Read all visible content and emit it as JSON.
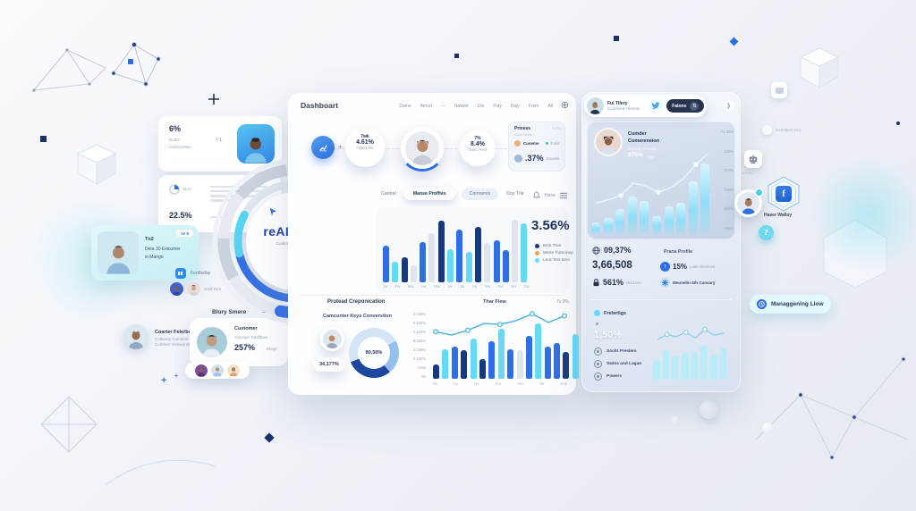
{
  "colors": {
    "blue": "#2f6fe4",
    "navy": "#16397f",
    "cyan": "#67d8f5",
    "cyan_light": "#b9ecfb",
    "gray_bar": "#dfe5ef",
    "orange": "#f0a05a",
    "green": "#3fcf8e",
    "text": "#1e2c50",
    "muted": "#8a96ac"
  },
  "left_column": {
    "stat_card": {
      "value": "6%",
      "label_line1": "Dulrte",
      "label_line2": "Comroretion",
      "delta": "+1"
    },
    "progress_card": {
      "label": "No's",
      "value": "22.5%"
    },
    "highlight_card": {
      "line1": "Tn2",
      "line2": "Deta 30 Exicumer",
      "line3": "in Mango",
      "badge": "Ye 8"
    },
    "day_chip": {
      "label": "Ferrlleday"
    },
    "team_chip": {
      "label": "Sold Yom"
    },
    "collab_note": {
      "title": "Coarter Felerbonation",
      "sub1": "Colwowy Cumnien Consply",
      "sub2": "Cumtner Verswonare denian"
    },
    "blur_card": {
      "header": "Blury Smere",
      "title": "Customer",
      "subtitle": "Carvege Tatalfnws",
      "value": "257%",
      "value_label": "Ebopr"
    }
  },
  "logo": {
    "title": "reALISTIC",
    "subtitle": "Custome Test Goals"
  },
  "dashboard": {
    "title": "Dashboart",
    "nav": [
      "Dame",
      "Amurt",
      "—",
      "Natwet",
      "Lile",
      "Fuly",
      "Daly",
      "From",
      "All"
    ],
    "stat1": {
      "line1": "7wk",
      "value": "4.61%",
      "line3": "Fated Yer"
    },
    "stat2": {
      "line1": "7%",
      "value": "8.4%",
      "line3": "Juet. Arell"
    },
    "promess_card": {
      "title": "Prmess",
      "badge": "8.5%",
      "subtitle": "Sarni Neme",
      "row1_label": "Cuseme",
      "row1_tag": "Folls",
      "row2_value": ".37%",
      "row2_label": "Dowels"
    },
    "tabs": [
      "Cantral",
      "Manse Proffies",
      "Comnents",
      "Doy Trle"
    ],
    "tabs_right_label": "Hane",
    "main_chart": {
      "type": "bar",
      "value_label": "3.56%",
      "legend": [
        {
          "label": "Mob Tiwe",
          "color": "#16397f"
        },
        {
          "label": "Merte Futeonep",
          "color": "#f0a05a"
        },
        {
          "label": "Leut Test Item",
          "color": "#67d8f5"
        }
      ],
      "bars": [
        {
          "v": 52,
          "c": "blue"
        },
        {
          "v": 30,
          "c": "cyan"
        },
        {
          "v": 36,
          "c": "navy"
        },
        {
          "v": 24,
          "c": "gray"
        },
        {
          "v": 58,
          "c": "blue"
        },
        {
          "v": 70,
          "c": "gray"
        },
        {
          "v": 88,
          "c": "navy"
        },
        {
          "v": 48,
          "c": "cyan"
        },
        {
          "v": 76,
          "c": "blue"
        },
        {
          "v": 44,
          "c": "cyan"
        },
        {
          "v": 80,
          "c": "navy"
        },
        {
          "v": 56,
          "c": "gray"
        },
        {
          "v": 60,
          "c": "blue"
        },
        {
          "v": 46,
          "c": "blue"
        },
        {
          "v": 90,
          "c": "gray"
        },
        {
          "v": 84,
          "c": "cyan"
        }
      ],
      "x_labels": [
        "Jw",
        "Fw",
        "Mw",
        "Aw",
        "Mw",
        "Jw",
        "Jw",
        "Aw",
        "Sw",
        "Ow",
        "Nw",
        "Dw"
      ]
    },
    "bottom_left": {
      "header": "Prutead Creponication",
      "title": "Camcunter Keys Converstion",
      "badge_value": "34,177%",
      "donut": {
        "type": "donut",
        "value": "80,50%",
        "segments": [
          {
            "pct": 17,
            "color": "#d3e4f6"
          },
          {
            "pct": 22,
            "color": "#93c0ec"
          },
          {
            "pct": 30,
            "color": "#1b479e"
          },
          {
            "pct": 31,
            "color": "#d3e4f6"
          }
        ]
      }
    },
    "combo_chart": {
      "type": "bar+line",
      "title": "Thar Fiew",
      "right_label": "7s 9%",
      "y_labels": [
        "3.100%",
        "5.180%",
        "2.100%",
        "8.160%",
        "2.100%",
        "0.160%",
        "700s",
        "50"
      ],
      "x_labels": [
        "Fs",
        "Fo",
        "Ns",
        "Fru",
        "Hm",
        "Wr",
        "Fos"
      ],
      "bars": [
        {
          "v": 22,
          "c": "navy"
        },
        {
          "v": 46,
          "c": "cyan"
        },
        {
          "v": 50,
          "c": "blue"
        },
        {
          "v": 44,
          "c": "navy"
        },
        {
          "v": 62,
          "c": "cyan"
        },
        {
          "v": 30,
          "c": "navy"
        },
        {
          "v": 58,
          "c": "blue"
        },
        {
          "v": 78,
          "c": "cyan"
        },
        {
          "v": 46,
          "c": "blue"
        },
        {
          "v": 44,
          "c": "gray"
        },
        {
          "v": 66,
          "c": "blue"
        },
        {
          "v": 86,
          "c": "cyan"
        },
        {
          "v": 50,
          "c": "blue"
        },
        {
          "v": 56,
          "c": "blue"
        },
        {
          "v": 42,
          "c": "navy"
        },
        {
          "v": 70,
          "c": "cyan"
        }
      ],
      "line": [
        55,
        48,
        58,
        72,
        70,
        78,
        92,
        74,
        88
      ],
      "markers": [
        0,
        2,
        4,
        6,
        8
      ]
    }
  },
  "right_panel": {
    "user_chip": {
      "name": "Ful Tifery",
      "subtitle": "Custoned Yeseets",
      "button": "Falons"
    },
    "profile_card": {
      "name_line1": "Cumder",
      "name_line2": "Comereneion",
      "subtitle": "Cepecty Fluwees",
      "value": "375%",
      "value_tag": "Hge"
    },
    "profile_chart": {
      "type": "bar+line",
      "bars": [
        14,
        20,
        30,
        46,
        40,
        22,
        34,
        38,
        64,
        86
      ],
      "line": [
        30,
        34,
        40,
        56,
        52,
        44,
        50,
        62,
        80,
        95
      ],
      "markers": [
        2,
        5,
        8
      ],
      "y_labels": [
        "71.30%",
        "330%",
        "310%",
        "130%",
        "450%",
        "160%"
      ]
    },
    "stats": {
      "stat1": "09,37%",
      "stat2": "3,66,508",
      "stat3": "561%",
      "stat3_label": "Wo Lom",
      "col2_title": "Prana Profile",
      "col2_row1_value": "15%",
      "col2_row1_label": "Liam Services",
      "col2_row2": "Meunelin 4th Cansary"
    },
    "bottom": {
      "header": "Frelertigs",
      "value": "1,50%",
      "items": [
        "Socht Preslers",
        "Swins and Lagan",
        "Powers"
      ],
      "chart": {
        "type": "bar+line",
        "bars": [
          40,
          62,
          48,
          56,
          58,
          70,
          52,
          64
        ],
        "line": [
          60,
          74,
          68,
          80,
          64,
          88,
          72,
          78
        ],
        "markers": [
          1,
          3,
          5
        ]
      }
    }
  },
  "floating": {
    "fb_badge_label": "Haser Walloy",
    "seven_bubble": "7",
    "manage_button": "Managgening Llow",
    "robot_label": "Mm Bo",
    "celebration_label": "Cebration Dey"
  }
}
